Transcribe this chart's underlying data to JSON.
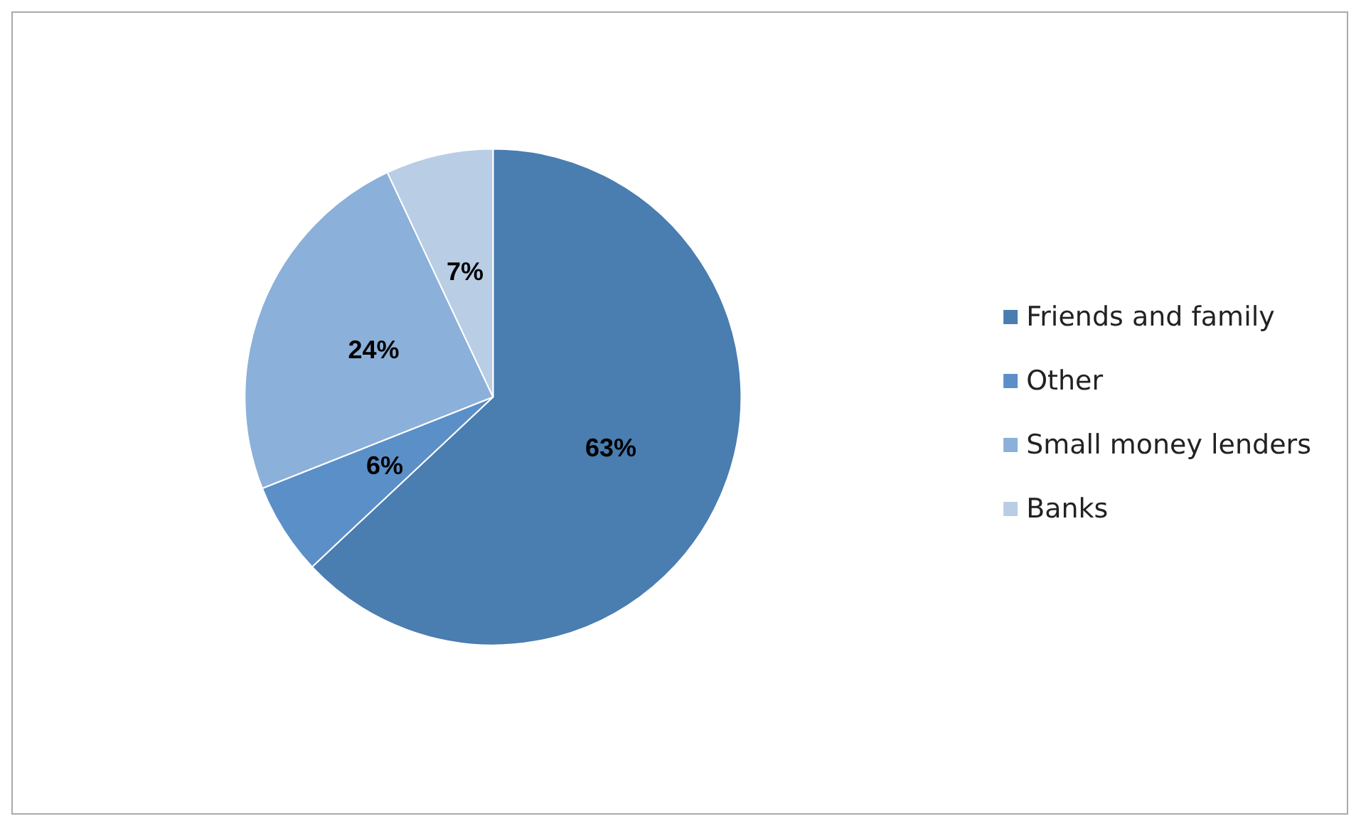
{
  "chart_data": {
    "type": "pie",
    "categories": [
      "Friends and family",
      "Other",
      "Small money lenders",
      "Banks"
    ],
    "values": [
      63,
      6,
      24,
      7
    ],
    "colors": [
      "#4a7db0",
      "#5b8fc8",
      "#8bb0d9",
      "#b9cde5"
    ],
    "value_labels": [
      "63%",
      "6%",
      "24%",
      "7%"
    ],
    "legend": "right"
  }
}
